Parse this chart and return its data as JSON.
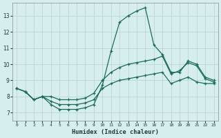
{
  "xlabel": "Humidex (Indice chaleur)",
  "background_color": "#d6eeee",
  "grid_color": "#c0d8d8",
  "line_color": "#1a6b5a",
  "xlim": [
    -0.5,
    23.5
  ],
  "ylim": [
    6.5,
    13.8
  ],
  "yticks": [
    7,
    8,
    9,
    10,
    11,
    12,
    13
  ],
  "xticks": [
    0,
    1,
    2,
    3,
    4,
    5,
    6,
    7,
    8,
    9,
    10,
    11,
    12,
    13,
    14,
    15,
    16,
    17,
    18,
    19,
    20,
    21,
    22,
    23
  ],
  "line1_x": [
    0,
    1,
    2,
    3,
    4,
    5,
    6,
    7,
    8,
    9,
    10,
    11,
    12,
    13,
    14,
    15,
    16,
    17,
    18,
    19,
    20,
    21,
    22,
    23
  ],
  "line1_y": [
    8.5,
    8.3,
    7.8,
    8.0,
    7.5,
    7.2,
    7.2,
    7.2,
    7.3,
    7.5,
    8.7,
    10.8,
    12.6,
    13.0,
    13.3,
    13.5,
    11.2,
    10.6,
    9.5,
    9.5,
    10.2,
    10.0,
    9.2,
    9.0
  ],
  "line2_x": [
    0,
    1,
    2,
    3,
    4,
    5,
    6,
    7,
    8,
    9,
    10,
    11,
    12,
    13,
    14,
    15,
    16,
    17,
    18,
    19,
    20,
    21,
    22,
    23
  ],
  "line2_y": [
    8.5,
    8.3,
    7.8,
    8.0,
    8.0,
    7.8,
    7.8,
    7.8,
    7.9,
    8.2,
    9.0,
    9.5,
    9.8,
    10.0,
    10.1,
    10.2,
    10.3,
    10.5,
    9.4,
    9.6,
    10.1,
    9.9,
    9.1,
    8.9
  ],
  "line3_x": [
    0,
    1,
    2,
    3,
    4,
    5,
    6,
    7,
    8,
    9,
    10,
    11,
    12,
    13,
    14,
    15,
    16,
    17,
    18,
    19,
    20,
    21,
    22,
    23
  ],
  "line3_y": [
    8.5,
    8.3,
    7.8,
    8.0,
    7.7,
    7.5,
    7.5,
    7.5,
    7.6,
    7.8,
    8.5,
    8.8,
    9.0,
    9.1,
    9.2,
    9.3,
    9.4,
    9.5,
    8.8,
    9.0,
    9.2,
    8.9,
    8.8,
    8.8
  ]
}
